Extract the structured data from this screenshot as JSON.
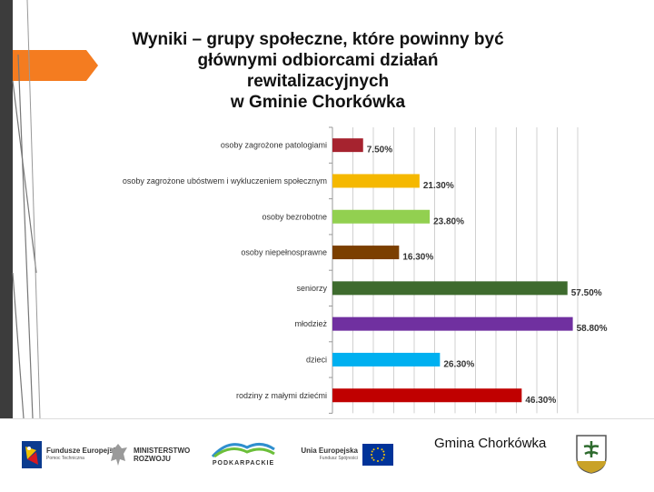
{
  "title_lines": [
    "Wyniki – grupy społeczne, które powinny być",
    "głównymi odbiorcami działań rewitalizacyjnych",
    "w Gminie Chorkówka"
  ],
  "chart_data": {
    "type": "bar",
    "orientation": "horizontal",
    "categories": [
      "osoby zagrożone patologiami",
      "osoby zagrożone ubóstwem i wykluczeniem społecznym",
      "osoby bezrobotne",
      "osoby niepełnosprawne",
      "seniorzy",
      "młodzież",
      "dzieci",
      "rodziny z małymi dziećmi"
    ],
    "values": [
      7.5,
      21.3,
      23.8,
      16.3,
      57.5,
      58.8,
      26.3,
      46.3
    ],
    "labels": [
      "7.50%",
      "21.30%",
      "23.80%",
      "16.30%",
      "57.50%",
      "58.80%",
      "26.30%",
      "46.30%"
    ],
    "colors": [
      "#a6232f",
      "#f5b800",
      "#92d050",
      "#7b3f00",
      "#3e6b2e",
      "#7030a0",
      "#00b0f0",
      "#c00000"
    ],
    "xlim": [
      0,
      60
    ],
    "grid": true,
    "legend": "none"
  },
  "footer": {
    "logos": [
      {
        "name": "Fundusze Europejskie",
        "sub": "Pomoc Techniczna"
      },
      {
        "name": "MINISTERSTWO ROZWOJU"
      },
      {
        "name": "PODKARPACKIE"
      },
      {
        "name": "Unia Europejska",
        "sub": "Fundusz Spójności"
      }
    ],
    "gmina_label": "Gmina Chorkówka"
  },
  "colors": {
    "accent_orange": "#f47c20",
    "side_dark": "#3c3c3c"
  }
}
